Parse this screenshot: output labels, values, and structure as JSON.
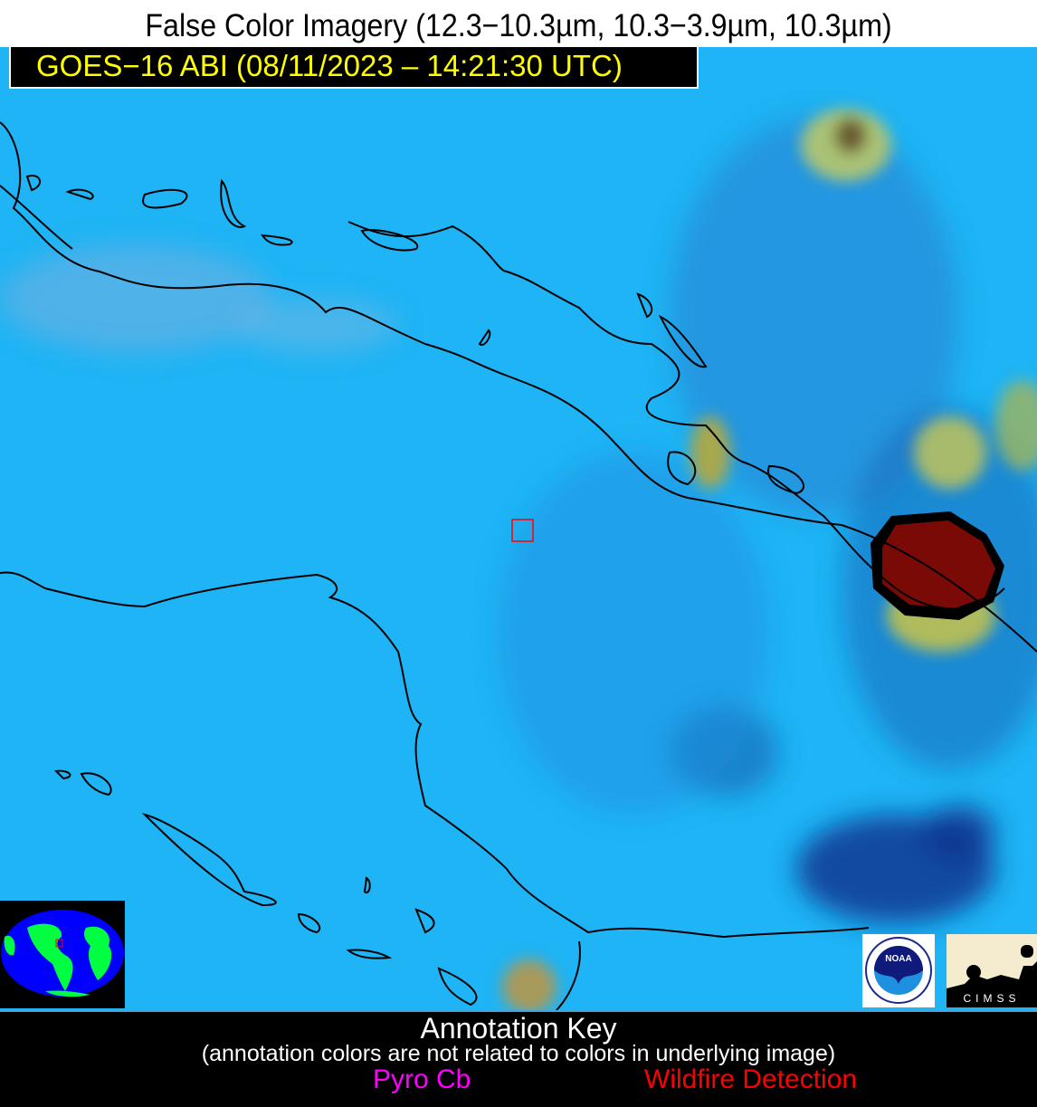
{
  "header": {
    "title": "False Color Imagery (12.3−10.3µm, 10.3−3.9µm, 10.3µm)",
    "timestamp_label": "GOES−16 ABI (08/11/2023 – 14:21:30 UTC)"
  },
  "map": {
    "background_color": "#1eb4f5",
    "coastline_color": "#000000",
    "fire_color": "#7a0a05",
    "marker_color": "#ff0000"
  },
  "logos": {
    "noaa": "NOAA",
    "cimss": "CIMSS"
  },
  "annotation_key": {
    "title": "Annotation Key",
    "note": "(annotation colors are not related to colors in underlying image)",
    "items": [
      {
        "label": "Pyro Cb",
        "color": "#ff00ff"
      },
      {
        "label": "Wildfire Detection",
        "color": "#ff0000"
      }
    ]
  }
}
